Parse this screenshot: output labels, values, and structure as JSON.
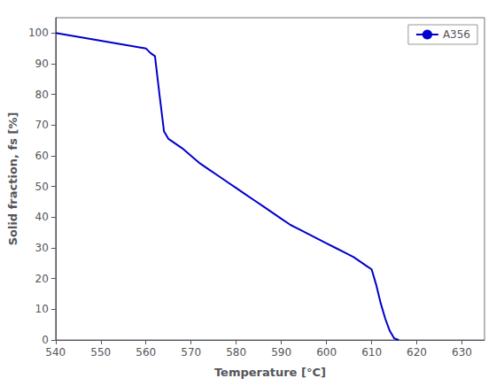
{
  "chart_data": {
    "type": "line",
    "xlabel": "Temperature [°C]",
    "ylabel": "Solid fraction, fs [%]",
    "x": [
      540,
      542,
      544,
      546,
      548,
      550,
      552,
      554,
      556,
      558,
      560,
      561,
      562,
      563,
      563.5,
      564,
      565,
      566,
      567,
      568,
      570,
      572,
      574,
      576,
      578,
      580,
      582,
      584,
      586,
      588,
      590,
      592,
      594,
      596,
      598,
      600,
      602,
      604,
      606,
      607,
      608,
      609,
      610,
      611,
      612,
      613,
      614,
      615,
      616
    ],
    "series": [
      {
        "name": "A356",
        "color": "#0000CC",
        "values": [
          100,
          99.5,
          99.0,
          98.5,
          98.0,
          97.5,
          97.0,
          96.5,
          96.0,
          95.5,
          95.0,
          93.5,
          92.5,
          80,
          74,
          68,
          65.5,
          64.5,
          63.5,
          62.5,
          60.0,
          57.5,
          55.5,
          53.5,
          51.5,
          49.5,
          47.5,
          45.5,
          43.5,
          41.5,
          39.5,
          37.5,
          36.0,
          34.5,
          33.0,
          31.5,
          30.0,
          28.5,
          27.0,
          26.0,
          25.0,
          24.0,
          23.0,
          18.0,
          12.0,
          7.0,
          3.0,
          0.5,
          0.0
        ]
      }
    ],
    "xlim": [
      540,
      635
    ],
    "ylim": [
      0,
      105
    ],
    "xticks": [
      540,
      550,
      560,
      570,
      580,
      590,
      600,
      610,
      620,
      630
    ],
    "yticks": [
      0,
      10,
      20,
      30,
      40,
      50,
      60,
      70,
      80,
      90,
      100
    ],
    "grid": false,
    "legend": "upper right"
  }
}
